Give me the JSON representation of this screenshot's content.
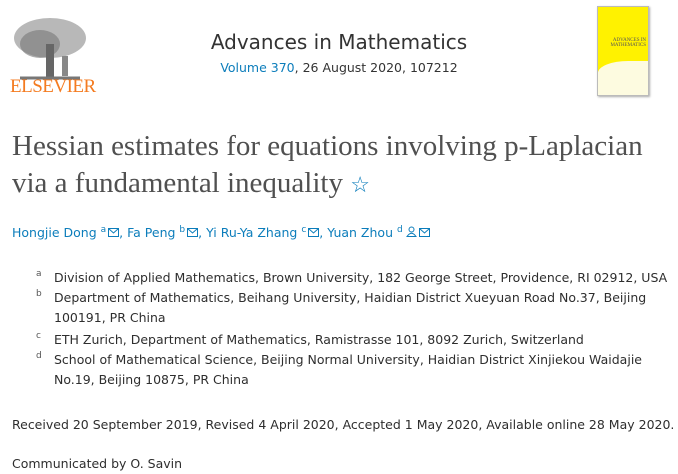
{
  "publisher": {
    "name": "ELSEVIER"
  },
  "journal": {
    "title": "Advances in Mathematics",
    "volume_link": "Volume 370",
    "issue_info": ", 26 August 2020, 107212",
    "cover_text": "ADVANCES IN MATHEMATICS"
  },
  "article": {
    "title": "Hessian estimates for equations involving p-Laplacian via a fundamental inequality",
    "star": "☆"
  },
  "authors": [
    {
      "name": "Hongjie Dong",
      "sup": "a",
      "sep": ", "
    },
    {
      "name": "Fa Peng",
      "sup": "b",
      "sep": ", "
    },
    {
      "name": "Yi Ru-Ya Zhang",
      "sup": "c",
      "sep": ", "
    },
    {
      "name": "Yuan Zhou",
      "sup": "d",
      "sep": ""
    }
  ],
  "affiliations": [
    {
      "label": "a",
      "text": "Division of Applied Mathematics, Brown University, 182 George Street, Providence, RI 02912, USA"
    },
    {
      "label": "b",
      "text": "Department of Mathematics, Beihang University, Haidian District Xueyuan Road No.37, Beijing 100191, PR China"
    },
    {
      "label": "c",
      "text": "ETH Zurich, Department of Mathematics, Ramistrasse 101, 8092 Zurich, Switzerland"
    },
    {
      "label": "d",
      "text": "School of Mathematical Science, Beijing Normal University, Haidian District Xinjiekou Waidajie No.19, Beijing 10875, PR China"
    }
  ],
  "dates": "Received 20 September 2019, Revised 4 April 2020, Accepted 1 May 2020, Available online 28 May 2020.",
  "communicated": "Communicated by O. Savin",
  "colors": {
    "link": "#0c7dbb",
    "elsevier": "#f47b20",
    "cover": "#fff200"
  }
}
